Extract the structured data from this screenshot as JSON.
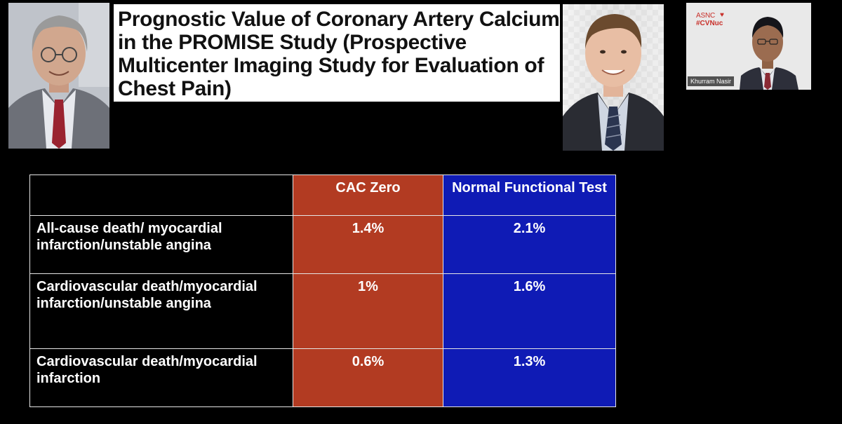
{
  "slide": {
    "title": "Prognostic Value of Coronary Artery Calcium in the PROMISE Study (Prospective Multicenter Imaging Study for Evaluation of Chest Pain)"
  },
  "video_tile": {
    "logo_brand": "ASNC",
    "logo_tag": "#CVNuc",
    "presenter_name": "Khurram Nasir"
  },
  "table": {
    "headers": [
      "",
      "CAC Zero",
      "Normal Functional Test"
    ],
    "rows": [
      {
        "outcome": "All-cause death/ myocardial infarction/unstable angina",
        "cac_zero": "1.4%",
        "normal_functional": "2.1%"
      },
      {
        "outcome": "Cardiovascular death/myocardial infarction/unstable angina",
        "cac_zero": "1%",
        "normal_functional": "1.6%"
      },
      {
        "outcome": "Cardiovascular death/myocardial infarction",
        "cac_zero": "0.6%",
        "normal_functional": "1.3%"
      }
    ]
  },
  "colors": {
    "background": "#000000",
    "cac_zero_column": "#b23b22",
    "normal_functional_column": "#0f1bb5",
    "asnc_red": "#c8302a"
  }
}
